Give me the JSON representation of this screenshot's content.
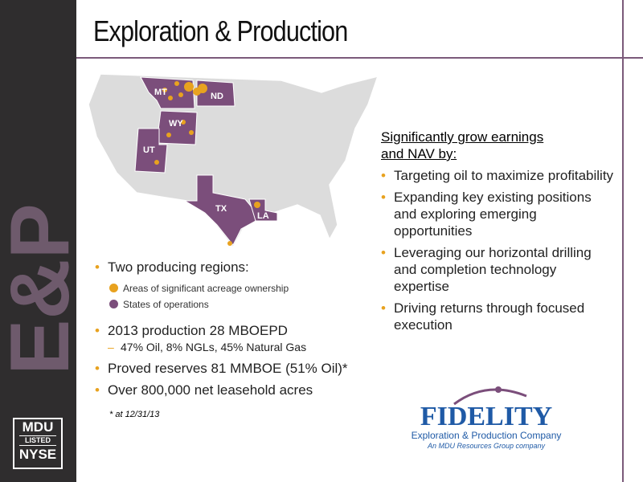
{
  "sidebar": {
    "watermark": "E&P",
    "logo": {
      "line1": "MDU",
      "line2": "LISTED",
      "line3": "NYSE"
    }
  },
  "header": {
    "title": "Exploration & Production"
  },
  "map": {
    "state_labels": [
      "MT",
      "ND",
      "WY",
      "UT",
      "TX",
      "LA"
    ]
  },
  "left": {
    "heading": "Two producing regions:",
    "legend": [
      "Areas of significant acreage ownership",
      "States of operations"
    ],
    "bullets": [
      {
        "text": "2013 production 28 MBOEPD",
        "sub": [
          "47% Oil, 8% NGLs, 45% Natural Gas"
        ]
      },
      {
        "text": "Proved reserves 81 MMBOE (51% Oil)*"
      },
      {
        "text": "Over 800,000 net leasehold acres"
      }
    ],
    "footnote": "* at 12/31/13"
  },
  "right": {
    "heading": "Significantly grow earnings and NAV by:",
    "bullets": [
      "Targeting oil to maximize profitability",
      "Expanding key existing positions and exploring emerging opportunities",
      "Leveraging our horizontal drilling and completion technology expertise",
      "Driving returns through focused execution"
    ]
  },
  "company_logo": {
    "name": "FIDELITY",
    "subtitle": "Exploration & Production Company",
    "tagline": "An MDU Resources Group company"
  }
}
